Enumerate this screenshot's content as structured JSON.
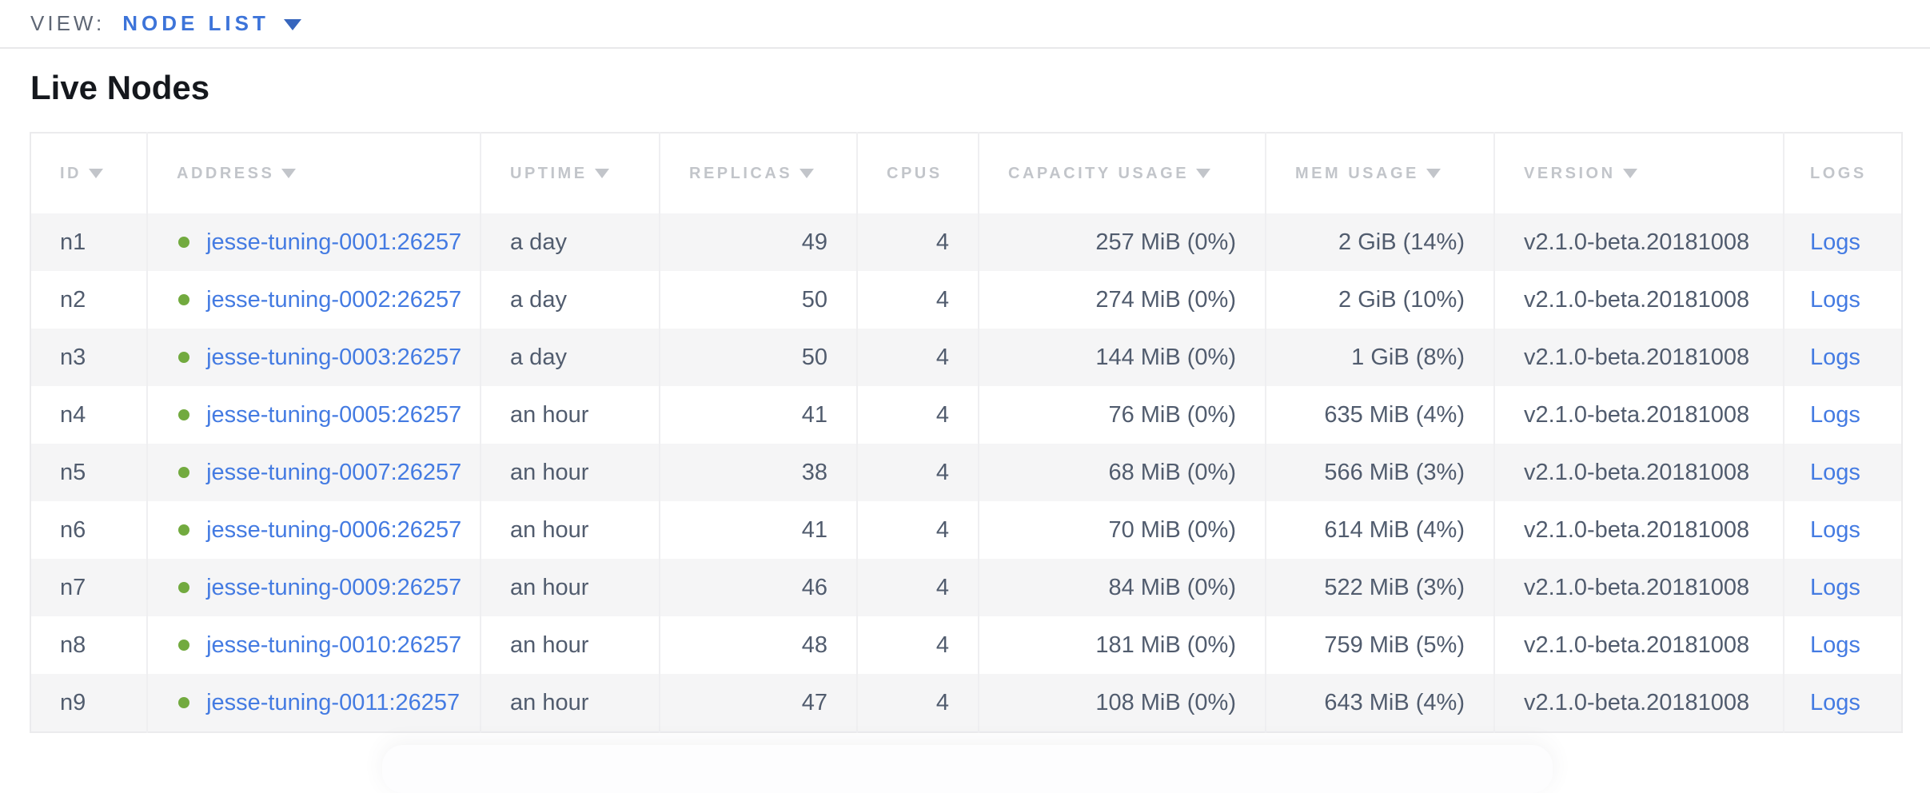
{
  "view_bar": {
    "label": "VIEW:",
    "selected": "NODE LIST"
  },
  "page": {
    "title": "Live Nodes"
  },
  "table": {
    "columns": [
      {
        "field": "id",
        "label": "ID",
        "sortable": true
      },
      {
        "field": "address",
        "label": "ADDRESS",
        "sortable": true
      },
      {
        "field": "uptime",
        "label": "UPTIME",
        "sortable": true
      },
      {
        "field": "replicas",
        "label": "REPLICAS",
        "sortable": true
      },
      {
        "field": "cpus",
        "label": "CPUS",
        "sortable": false
      },
      {
        "field": "capacity_usage",
        "label": "CAPACITY USAGE",
        "sortable": true
      },
      {
        "field": "mem_usage",
        "label": "MEM USAGE",
        "sortable": true
      },
      {
        "field": "version",
        "label": "VERSION",
        "sortable": true
      },
      {
        "field": "logs",
        "label": "LOGS",
        "sortable": false
      }
    ],
    "rows": [
      {
        "id": "n1",
        "status": "live",
        "address": "jesse-tuning-0001:26257",
        "uptime": "a day",
        "replicas": "49",
        "cpus": "4",
        "capacity_usage": "257 MiB (0%)",
        "mem_usage": "2 GiB (14%)",
        "version": "v2.1.0-beta.20181008",
        "logs": "Logs"
      },
      {
        "id": "n2",
        "status": "live",
        "address": "jesse-tuning-0002:26257",
        "uptime": "a day",
        "replicas": "50",
        "cpus": "4",
        "capacity_usage": "274 MiB (0%)",
        "mem_usage": "2 GiB (10%)",
        "version": "v2.1.0-beta.20181008",
        "logs": "Logs"
      },
      {
        "id": "n3",
        "status": "live",
        "address": "jesse-tuning-0003:26257",
        "uptime": "a day",
        "replicas": "50",
        "cpus": "4",
        "capacity_usage": "144 MiB (0%)",
        "mem_usage": "1 GiB (8%)",
        "version": "v2.1.0-beta.20181008",
        "logs": "Logs"
      },
      {
        "id": "n4",
        "status": "live",
        "address": "jesse-tuning-0005:26257",
        "uptime": "an hour",
        "replicas": "41",
        "cpus": "4",
        "capacity_usage": "76 MiB (0%)",
        "mem_usage": "635 MiB (4%)",
        "version": "v2.1.0-beta.20181008",
        "logs": "Logs"
      },
      {
        "id": "n5",
        "status": "live",
        "address": "jesse-tuning-0007:26257",
        "uptime": "an hour",
        "replicas": "38",
        "cpus": "4",
        "capacity_usage": "68 MiB (0%)",
        "mem_usage": "566 MiB (3%)",
        "version": "v2.1.0-beta.20181008",
        "logs": "Logs"
      },
      {
        "id": "n6",
        "status": "live",
        "address": "jesse-tuning-0006:26257",
        "uptime": "an hour",
        "replicas": "41",
        "cpus": "4",
        "capacity_usage": "70 MiB (0%)",
        "mem_usage": "614 MiB (4%)",
        "version": "v2.1.0-beta.20181008",
        "logs": "Logs"
      },
      {
        "id": "n7",
        "status": "live",
        "address": "jesse-tuning-0009:26257",
        "uptime": "an hour",
        "replicas": "46",
        "cpus": "4",
        "capacity_usage": "84 MiB (0%)",
        "mem_usage": "522 MiB (3%)",
        "version": "v2.1.0-beta.20181008",
        "logs": "Logs"
      },
      {
        "id": "n8",
        "status": "live",
        "address": "jesse-tuning-0010:26257",
        "uptime": "an hour",
        "replicas": "48",
        "cpus": "4",
        "capacity_usage": "181 MiB (0%)",
        "mem_usage": "759 MiB (5%)",
        "version": "v2.1.0-beta.20181008",
        "logs": "Logs"
      },
      {
        "id": "n9",
        "status": "live",
        "address": "jesse-tuning-0011:26257",
        "uptime": "an hour",
        "replicas": "47",
        "cpus": "4",
        "capacity_usage": "108 MiB (0%)",
        "mem_usage": "643 MiB (4%)",
        "version": "v2.1.0-beta.20181008",
        "logs": "Logs"
      }
    ]
  },
  "colors": {
    "link_blue": "#447be2",
    "dropdown_blue": "#3d74d9",
    "live_dot_green": "#72aa3f",
    "header_text_gray": "#c2c5ca",
    "cell_text": "#515c6e",
    "row_alt_bg": "#f5f5f6",
    "divider": "#e8e8ea"
  }
}
